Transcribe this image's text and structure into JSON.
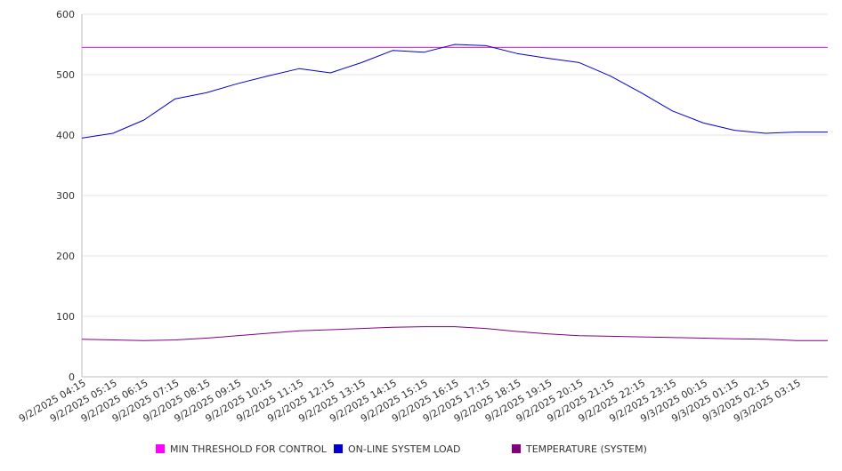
{
  "chart_data": {
    "type": "line",
    "title": "",
    "xlabel": "",
    "ylabel": "",
    "ylim": [
      0,
      600
    ],
    "yticks": [
      0,
      100,
      200,
      300,
      400,
      500,
      600
    ],
    "grid": true,
    "legend_position": "bottom",
    "x_tick_labels": [
      "9/2/2025 04:15",
      "9/2/2025 05:15",
      "9/2/2025 06:15",
      "9/2/2025 07:15",
      "9/2/2025 08:15",
      "9/2/2025 09:15",
      "9/2/2025 10:15",
      "9/2/2025 11:15",
      "9/2/2025 12:15",
      "9/2/2025 13:15",
      "9/2/2025 14:15",
      "9/2/2025 15:15",
      "9/2/2025 16:15",
      "9/2/2025 17:15",
      "9/2/2025 18:15",
      "9/2/2025 19:15",
      "9/2/2025 20:15",
      "9/2/2025 21:15",
      "9/2/2025 22:15",
      "9/2/2025 23:15",
      "9/3/2025 00:15",
      "9/3/2025 01:15",
      "9/3/2025 02:15",
      "9/3/2025 03:15"
    ],
    "series": [
      {
        "name": "MIN THRESHOLD FOR CONTROL",
        "color": "#ff00ff",
        "values": [
          545,
          545,
          545,
          545,
          545,
          545,
          545,
          545,
          545,
          545,
          545,
          545,
          545,
          545,
          545,
          545,
          545,
          545,
          545,
          545,
          545,
          545,
          545,
          545
        ]
      },
      {
        "name": "ON-LINE SYSTEM LOAD",
        "color": "#0000cc",
        "values": [
          395,
          403,
          425,
          460,
          470,
          485,
          498,
          510,
          503,
          520,
          540,
          537,
          550,
          548,
          535,
          527,
          520,
          498,
          470,
          440,
          420,
          408,
          403,
          405
        ]
      },
      {
        "name": "TEMPERATURE (SYSTEM)",
        "color": "#800080",
        "values": [
          62,
          61,
          60,
          61,
          64,
          68,
          72,
          76,
          78,
          80,
          82,
          83,
          83,
          80,
          75,
          71,
          68,
          67,
          66,
          65,
          64,
          63,
          62,
          60
        ]
      }
    ]
  }
}
